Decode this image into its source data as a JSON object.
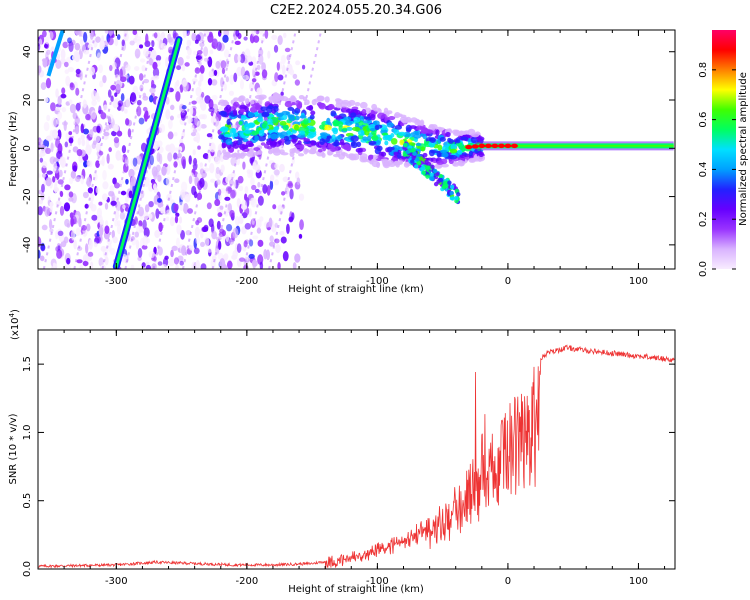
{
  "title": "C2E2.2024.055.20.34.G06",
  "chart_data": [
    {
      "type": "heatmap",
      "xlabel": "Height of straight line (km)",
      "ylabel": "Frequency (Hz)",
      "xlim": [
        -360,
        128
      ],
      "ylim": [
        -50,
        49
      ],
      "xticks": [
        -300,
        -200,
        -100,
        0,
        100
      ],
      "yticks": [
        -40,
        -20,
        0,
        20,
        40
      ],
      "colorbar": {
        "label": "Normalized spectral amplitude",
        "range": [
          0.0,
          0.96
        ],
        "ticks": [
          0.0,
          0.2,
          0.4,
          0.6,
          0.8
        ],
        "colors": [
          "#f8ecff",
          "#d9b3ff",
          "#9933ff",
          "#6600ff",
          "#2222ff",
          "#00a0ff",
          "#00e0ff",
          "#00ff60",
          "#40ff00",
          "#ffff00",
          "#ff8000",
          "#ff0000",
          "#ff0066"
        ]
      },
      "features": {
        "background_noise_extent_x": [
          -360,
          -150
        ],
        "carrier_track": [
          {
            "x": -220,
            "y": 8
          },
          {
            "x": -180,
            "y": 10
          },
          {
            "x": -150,
            "y": 9
          },
          {
            "x": -120,
            "y": 8
          },
          {
            "x": -100,
            "y": 5
          },
          {
            "x": -80,
            "y": 3
          },
          {
            "x": -60,
            "y": 1
          },
          {
            "x": -40,
            "y": 0
          },
          {
            "x": -20,
            "y": 1
          },
          {
            "x": 0,
            "y": 1
          },
          {
            "x": 40,
            "y": 1
          },
          {
            "x": 80,
            "y": 1
          },
          {
            "x": 128,
            "y": 1
          }
        ],
        "descending_branch": [
          {
            "x": -80,
            "y": 0
          },
          {
            "x": -60,
            "y": -6
          },
          {
            "x": -45,
            "y": -14
          },
          {
            "x": -38,
            "y": -20
          }
        ],
        "diagonal_streak": [
          {
            "x": -300,
            "y": -49
          },
          {
            "x": -252,
            "y": 45
          }
        ]
      }
    },
    {
      "type": "line",
      "xlabel": "Height of straight line (km)",
      "ylabel": "SNR (10 * v/v)",
      "y_multiplier": "(x10",
      "y_multiplier_exp": "4",
      "y_multiplier_close": ")",
      "xlim": [
        -360,
        128
      ],
      "ylim": [
        0.0,
        1.75
      ],
      "xticks": [
        -300,
        -200,
        -100,
        0,
        100
      ],
      "yticks": [
        0.0,
        0.5,
        1.0,
        1.5
      ],
      "ytick_labels": [
        "0.0",
        "0.5",
        "1.0",
        "1.5"
      ],
      "color": "#ee3333",
      "series": [
        {
          "values": [
            {
              "x": -360,
              "y": 0.02
            },
            {
              "x": -300,
              "y": 0.03
            },
            {
              "x": -270,
              "y": 0.05
            },
            {
              "x": -240,
              "y": 0.04
            },
            {
              "x": -210,
              "y": 0.03
            },
            {
              "x": -180,
              "y": 0.03
            },
            {
              "x": -150,
              "y": 0.04
            },
            {
              "x": -130,
              "y": 0.07
            },
            {
              "x": -110,
              "y": 0.12
            },
            {
              "x": -90,
              "y": 0.2
            },
            {
              "x": -70,
              "y": 0.3
            },
            {
              "x": -50,
              "y": 0.45
            },
            {
              "x": -35,
              "y": 0.65
            },
            {
              "x": -25,
              "y": 0.9
            },
            {
              "x": -18,
              "y": 1.05
            },
            {
              "x": -10,
              "y": 1.1
            },
            {
              "x": 0,
              "y": 1.2
            },
            {
              "x": 10,
              "y": 1.35
            },
            {
              "x": 20,
              "y": 1.5
            },
            {
              "x": 30,
              "y": 1.58
            },
            {
              "x": 45,
              "y": 1.62
            },
            {
              "x": 60,
              "y": 1.6
            },
            {
              "x": 80,
              "y": 1.58
            },
            {
              "x": 100,
              "y": 1.56
            },
            {
              "x": 128,
              "y": 1.53
            }
          ]
        }
      ]
    }
  ]
}
